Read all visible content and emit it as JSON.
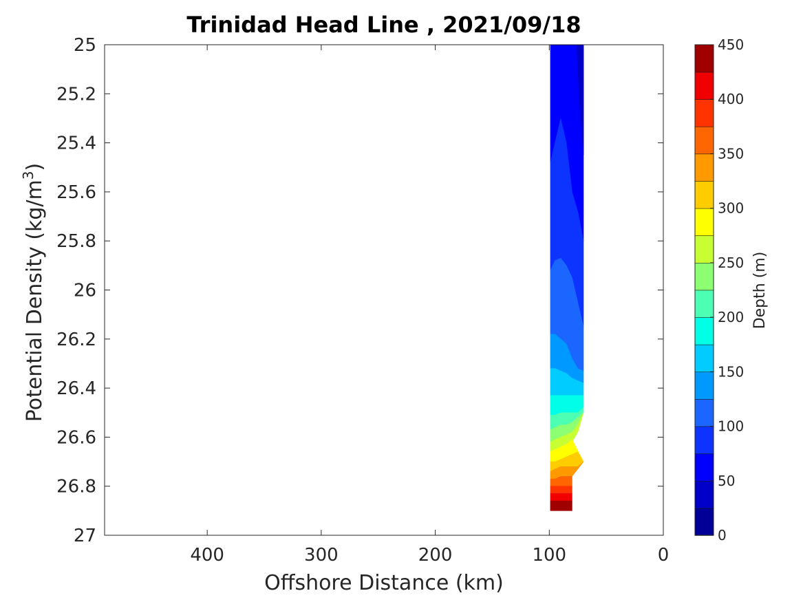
{
  "chart_data": {
    "type": "contour",
    "title": "Trinidad Head Line , 2021/09/18",
    "xlabel": "Offshore Distance (km)",
    "ylabel_main": "Potential Density (kg/m",
    "ylabel_sup": "3",
    "ylabel_close": ")",
    "xlim": [
      490,
      0
    ],
    "x_reversed": true,
    "ylim": [
      25,
      27
    ],
    "y_reversed": true,
    "x_ticks": [
      400,
      300,
      200,
      100,
      0
    ],
    "x_tick_labels": [
      "400",
      "300",
      "200",
      "100",
      "0"
    ],
    "y_ticks": [
      25,
      25.2,
      25.4,
      25.6,
      25.8,
      26,
      26.2,
      26.4,
      26.6,
      26.8,
      27
    ],
    "y_tick_labels": [
      "25",
      "25.2",
      "25.4",
      "25.6",
      "25.8",
      "26",
      "26.2",
      "26.4",
      "26.6",
      "26.8",
      "27"
    ],
    "colorbar": {
      "label": "Depth (m)",
      "range": [
        0,
        450
      ],
      "ticks": [
        0,
        50,
        100,
        150,
        200,
        250,
        300,
        350,
        400,
        450
      ],
      "tick_labels": [
        "0",
        "50",
        "100",
        "150",
        "200",
        "250",
        "300",
        "350",
        "400",
        "450"
      ],
      "colors": [
        "#000096",
        "#0000c8",
        "#0000ff",
        "#0d33ff",
        "#1a66ff",
        "#0099ff",
        "#00ccff",
        "#00ffe6",
        "#4dffb3",
        "#8cff73",
        "#c8ff32",
        "#ffff00",
        "#ffcc00",
        "#ff9900",
        "#ff6600",
        "#ff3300",
        "#f00000",
        "#a00000"
      ]
    },
    "stations_km": [
      99,
      95,
      90,
      85,
      80,
      70
    ],
    "field_note": "Depth (m) of potential-density surfaces along the Trinidad Head Line; colored fill only between offshore distances ~70-99 km, densities ~25 to ~26.9 kg/m3.",
    "contour_bands": [
      {
        "level_index": 2,
        "polygon": [
          [
            99,
            25.0
          ],
          [
            99,
            25.48
          ],
          [
            95,
            25.4
          ],
          [
            90,
            25.3
          ],
          [
            85,
            25.4
          ],
          [
            80,
            25.6
          ],
          [
            75,
            25.68
          ],
          [
            70,
            25.8
          ],
          [
            70,
            25.0
          ]
        ]
      },
      {
        "level_index": 1,
        "polygon": [
          [
            76,
            25.0
          ],
          [
            70,
            25.0
          ],
          [
            70,
            25.45
          ],
          [
            74,
            25.2
          ]
        ]
      },
      {
        "level_index": 3,
        "polygon": [
          [
            99,
            25.48
          ],
          [
            99,
            25.92
          ],
          [
            95,
            25.88
          ],
          [
            90,
            25.87
          ],
          [
            85,
            25.9
          ],
          [
            80,
            25.95
          ],
          [
            75,
            26.05
          ],
          [
            70,
            26.15
          ],
          [
            70,
            25.8
          ],
          [
            75,
            25.68
          ],
          [
            80,
            25.6
          ],
          [
            85,
            25.4
          ],
          [
            90,
            25.3
          ],
          [
            95,
            25.4
          ]
        ]
      },
      {
        "level_index": 4,
        "polygon": [
          [
            99,
            25.92
          ],
          [
            99,
            26.18
          ],
          [
            95,
            26.18
          ],
          [
            90,
            26.2
          ],
          [
            85,
            26.22
          ],
          [
            80,
            26.28
          ],
          [
            75,
            26.32
          ],
          [
            70,
            26.33
          ],
          [
            70,
            26.15
          ],
          [
            75,
            26.05
          ],
          [
            80,
            25.95
          ],
          [
            85,
            25.9
          ],
          [
            90,
            25.87
          ],
          [
            95,
            25.88
          ]
        ]
      },
      {
        "level_index": 5,
        "polygon": [
          [
            99,
            26.18
          ],
          [
            99,
            26.32
          ],
          [
            95,
            26.32
          ],
          [
            90,
            26.33
          ],
          [
            85,
            26.34
          ],
          [
            80,
            26.36
          ],
          [
            75,
            26.37
          ],
          [
            70,
            26.38
          ],
          [
            70,
            26.33
          ],
          [
            75,
            26.32
          ],
          [
            80,
            26.28
          ],
          [
            85,
            26.22
          ],
          [
            90,
            26.2
          ],
          [
            95,
            26.18
          ]
        ]
      },
      {
        "level_index": 6,
        "polygon": [
          [
            99,
            26.32
          ],
          [
            99,
            26.43
          ],
          [
            70,
            26.43
          ],
          [
            70,
            26.38
          ],
          [
            75,
            26.37
          ],
          [
            80,
            26.36
          ],
          [
            85,
            26.34
          ],
          [
            90,
            26.33
          ],
          [
            95,
            26.32
          ]
        ]
      },
      {
        "level_index": 7,
        "polygon": [
          [
            99,
            26.43
          ],
          [
            99,
            26.51
          ],
          [
            95,
            26.51
          ],
          [
            90,
            26.5
          ],
          [
            85,
            26.5
          ],
          [
            80,
            26.5
          ],
          [
            75,
            26.5
          ],
          [
            70,
            26.48
          ],
          [
            70,
            26.43
          ]
        ]
      },
      {
        "level_index": 8,
        "polygon": [
          [
            99,
            26.51
          ],
          [
            99,
            26.57
          ],
          [
            95,
            26.56
          ],
          [
            90,
            26.55
          ],
          [
            85,
            26.55
          ],
          [
            80,
            26.54
          ],
          [
            75,
            26.52
          ],
          [
            70,
            26.5
          ],
          [
            70,
            26.48
          ],
          [
            75,
            26.5
          ],
          [
            80,
            26.5
          ],
          [
            85,
            26.5
          ],
          [
            90,
            26.5
          ],
          [
            95,
            26.51
          ]
        ]
      },
      {
        "level_index": 9,
        "polygon": [
          [
            99,
            26.57
          ],
          [
            99,
            26.62
          ],
          [
            95,
            26.61
          ],
          [
            90,
            26.6
          ],
          [
            85,
            26.59
          ],
          [
            80,
            26.58
          ],
          [
            75,
            26.55
          ],
          [
            70,
            26.5
          ],
          [
            75,
            26.52
          ],
          [
            80,
            26.54
          ],
          [
            85,
            26.55
          ],
          [
            90,
            26.55
          ],
          [
            95,
            26.56
          ]
        ]
      },
      {
        "level_index": 10,
        "polygon": [
          [
            99,
            26.62
          ],
          [
            99,
            26.66
          ],
          [
            95,
            26.65
          ],
          [
            90,
            26.64
          ],
          [
            85,
            26.63
          ],
          [
            80,
            26.62
          ],
          [
            75,
            26.58
          ],
          [
            70,
            26.5
          ],
          [
            75,
            26.55
          ],
          [
            80,
            26.58
          ],
          [
            85,
            26.59
          ],
          [
            90,
            26.6
          ],
          [
            95,
            26.61
          ]
        ]
      },
      {
        "level_index": 11,
        "polygon": [
          [
            99,
            26.66
          ],
          [
            99,
            26.7
          ],
          [
            95,
            26.7
          ],
          [
            90,
            26.69
          ],
          [
            85,
            26.68
          ],
          [
            80,
            26.67
          ],
          [
            75,
            26.66
          ],
          [
            70,
            26.7
          ],
          [
            80,
            26.61
          ],
          [
            85,
            26.63
          ],
          [
            90,
            26.64
          ],
          [
            95,
            26.65
          ]
        ]
      },
      {
        "level_index": 12,
        "polygon": [
          [
            99,
            26.7
          ],
          [
            99,
            26.74
          ],
          [
            95,
            26.73
          ],
          [
            90,
            26.72
          ],
          [
            85,
            26.72
          ],
          [
            80,
            26.72
          ],
          [
            75,
            26.72
          ],
          [
            70,
            26.7
          ],
          [
            75,
            26.66
          ],
          [
            80,
            26.67
          ],
          [
            85,
            26.68
          ],
          [
            90,
            26.69
          ],
          [
            95,
            26.7
          ]
        ]
      },
      {
        "level_index": 13,
        "polygon": [
          [
            99,
            26.74
          ],
          [
            99,
            26.77
          ],
          [
            95,
            26.77
          ],
          [
            90,
            26.76
          ],
          [
            85,
            26.76
          ],
          [
            80,
            26.76
          ],
          [
            70,
            26.7
          ],
          [
            75,
            26.72
          ],
          [
            80,
            26.72
          ],
          [
            85,
            26.72
          ],
          [
            90,
            26.72
          ],
          [
            95,
            26.73
          ]
        ]
      },
      {
        "level_index": 14,
        "polygon": [
          [
            99,
            26.77
          ],
          [
            99,
            26.8
          ],
          [
            95,
            26.8
          ],
          [
            90,
            26.8
          ],
          [
            85,
            26.8
          ],
          [
            80,
            26.8
          ],
          [
            80,
            26.76
          ],
          [
            85,
            26.76
          ],
          [
            90,
            26.76
          ],
          [
            95,
            26.77
          ]
        ]
      },
      {
        "level_index": 15,
        "polygon": [
          [
            99,
            26.8
          ],
          [
            99,
            26.83
          ],
          [
            80,
            26.83
          ],
          [
            80,
            26.8
          ]
        ]
      },
      {
        "level_index": 16,
        "polygon": [
          [
            99,
            26.83
          ],
          [
            99,
            26.86
          ],
          [
            80,
            26.86
          ],
          [
            80,
            26.83
          ]
        ]
      },
      {
        "level_index": 17,
        "polygon": [
          [
            99,
            26.86
          ],
          [
            99,
            26.9
          ],
          [
            80,
            26.9
          ],
          [
            80,
            26.86
          ]
        ]
      }
    ]
  }
}
